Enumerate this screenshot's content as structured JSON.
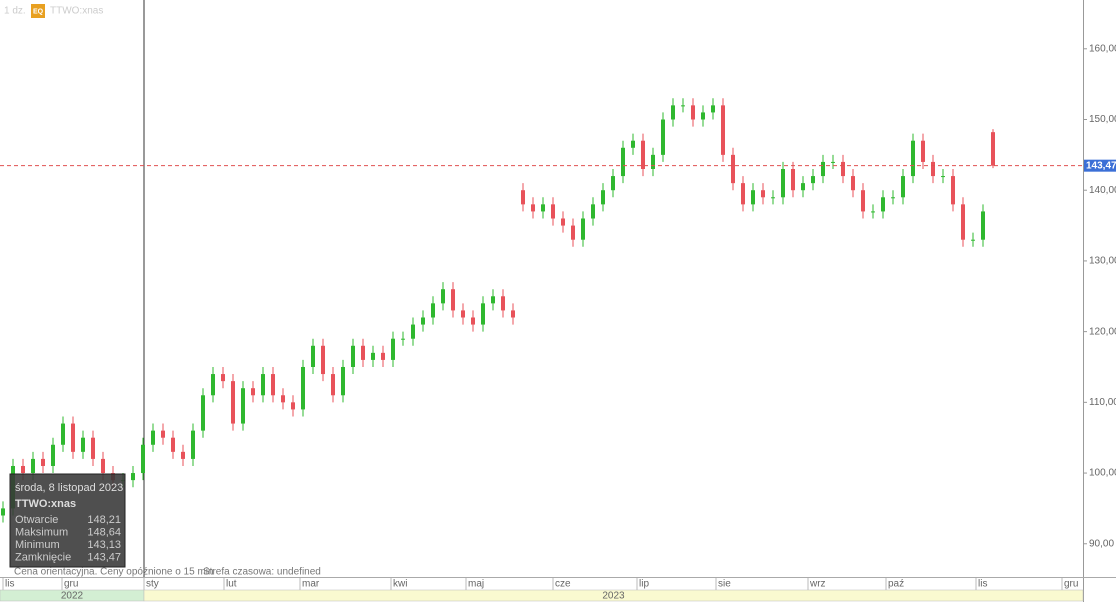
{
  "chart_data": {
    "type": "candlestick",
    "header": {
      "interval": "1 dz.",
      "badge": "EQ",
      "symbol": "TTWO:xnas"
    },
    "note": "Cena orientacyjna. Ceny opóźnione o 15 min",
    "timezone": "Strefa czasowa: undefined",
    "colors": {
      "up": "#2fb82f",
      "down": "#e8525a"
    },
    "open": [
      94,
      95,
      101,
      100,
      102,
      101,
      104,
      107,
      103,
      105,
      102,
      100,
      99,
      99,
      100,
      104,
      106,
      105,
      103,
      102,
      106,
      111,
      114,
      113,
      107,
      112,
      111,
      114,
      111,
      110,
      109,
      115,
      118,
      114,
      111,
      115,
      118,
      116,
      117,
      116,
      119,
      119,
      121,
      122,
      124,
      126,
      123,
      122,
      121,
      124,
      125,
      123,
      140,
      138,
      137,
      138,
      136,
      135,
      133,
      136,
      138,
      140,
      142,
      146,
      147,
      143,
      145,
      150,
      152,
      152,
      150,
      151,
      152,
      145,
      141,
      138,
      140,
      139,
      139,
      143,
      140,
      141,
      142,
      144,
      144,
      142,
      140,
      137,
      137,
      139,
      139,
      142,
      147,
      144,
      142,
      142,
      138,
      133,
      133,
      148.21
    ],
    "high": [
      96,
      102,
      102,
      103,
      103,
      105,
      108,
      108,
      106,
      106,
      103,
      101,
      100,
      101,
      105,
      107,
      107,
      106,
      104,
      107,
      112,
      115,
      115,
      114,
      113,
      113,
      115,
      115,
      112,
      111,
      116,
      119,
      119,
      115,
      116,
      119,
      119,
      118,
      118,
      120,
      120,
      122,
      123,
      125,
      127,
      127,
      124,
      123,
      125,
      126,
      126,
      124,
      141,
      139,
      139,
      139,
      137,
      136,
      137,
      139,
      141,
      143,
      147,
      148,
      148,
      146,
      151,
      153,
      153,
      153,
      152,
      153,
      153,
      146,
      142,
      141,
      141,
      140,
      144,
      144,
      142,
      143,
      145,
      145,
      145,
      143,
      141,
      138,
      140,
      140,
      143,
      148,
      148,
      145,
      143,
      143,
      139,
      134,
      138,
      148.64
    ],
    "low": [
      93,
      94,
      99,
      99,
      100,
      100,
      103,
      102,
      102,
      101,
      99,
      98,
      98,
      98,
      99,
      103,
      104,
      102,
      101,
      101,
      105,
      110,
      112,
      106,
      106,
      110,
      110,
      110,
      109,
      108,
      108,
      114,
      113,
      110,
      110,
      114,
      115,
      115,
      115,
      115,
      118,
      118,
      120,
      121,
      123,
      122,
      121,
      120,
      120,
      123,
      122,
      121,
      137,
      136,
      136,
      135,
      134,
      132,
      132,
      135,
      137,
      139,
      141,
      145,
      142,
      142,
      144,
      149,
      151,
      149,
      149,
      150,
      144,
      140,
      137,
      137,
      138,
      138,
      138,
      139,
      139,
      140,
      141,
      143,
      141,
      139,
      136,
      136,
      136,
      138,
      138,
      141,
      143,
      141,
      141,
      137,
      132,
      132,
      132,
      143.13
    ],
    "close": [
      95,
      101,
      100,
      102,
      101,
      104,
      107,
      103,
      105,
      102,
      100,
      99,
      99,
      100,
      104,
      106,
      105,
      103,
      102,
      106,
      111,
      114,
      113,
      107,
      112,
      111,
      114,
      111,
      110,
      109,
      115,
      118,
      114,
      111,
      115,
      118,
      116,
      117,
      116,
      119,
      119,
      121,
      122,
      124,
      126,
      123,
      122,
      121,
      124,
      125,
      123,
      122,
      138,
      137,
      138,
      136,
      135,
      133,
      136,
      138,
      140,
      142,
      146,
      147,
      143,
      145,
      150,
      152,
      152,
      150,
      151,
      152,
      145,
      141,
      138,
      140,
      139,
      139,
      143,
      140,
      141,
      142,
      144,
      144,
      142,
      140,
      137,
      137,
      139,
      139,
      142,
      147,
      144,
      142,
      142,
      138,
      133,
      133,
      137,
      143.47
    ],
    "xlim": [
      -0.3,
      108
    ],
    "xticks": [
      {
        "value": 0,
        "label": "lis"
      },
      {
        "value": 5.9,
        "label": "gru"
      },
      {
        "value": 14.1,
        "label": "sty"
      },
      {
        "value": 22.1,
        "label": "lut"
      },
      {
        "value": 29.7,
        "label": "mar"
      },
      {
        "value": 38.8,
        "label": "kwi"
      },
      {
        "value": 46.3,
        "label": "maj"
      },
      {
        "value": 55,
        "label": "cze"
      },
      {
        "value": 63.4,
        "label": "lip"
      },
      {
        "value": 71.3,
        "label": "sie"
      },
      {
        "value": 80.5,
        "label": "wrz"
      },
      {
        "value": 88.3,
        "label": "paź"
      },
      {
        "value": 97.3,
        "label": "lis"
      },
      {
        "value": 105.9,
        "label": "gru"
      }
    ],
    "years": [
      {
        "label": "2022",
        "start": -0.3,
        "end": 14.1,
        "color": "#d3efd3"
      },
      {
        "label": "2023",
        "start": 14.1,
        "end": 108,
        "color": "#fafad0"
      }
    ],
    "ylim": [
      85.3,
      166.9
    ],
    "yticks": [
      {
        "value": 90,
        "label": "90,00"
      },
      {
        "value": 100,
        "label": "100,00"
      },
      {
        "value": 110,
        "label": "110,00"
      },
      {
        "value": 120,
        "label": "120,00"
      },
      {
        "value": 130,
        "label": "130,00"
      },
      {
        "value": 140,
        "label": "140,00"
      },
      {
        "value": 150,
        "label": "150,00"
      },
      {
        "value": 160,
        "label": "160,00"
      }
    ],
    "last_price": {
      "value": 143.47,
      "label": "143,47"
    },
    "tooltip": {
      "date": "środa, 8 listopad 2023",
      "symbol": "TTWO:xnas",
      "rows": [
        {
          "label": "Otwarcie",
          "value": 148.21,
          "value_label": "148,21"
        },
        {
          "label": "Maksimum",
          "value": 148.64,
          "value_label": "148,64"
        },
        {
          "label": "Minimum",
          "value": 143.13,
          "value_label": "143,13"
        },
        {
          "label": "Zamknięcie",
          "value": 143.47,
          "value_label": "143,47"
        }
      ]
    }
  }
}
